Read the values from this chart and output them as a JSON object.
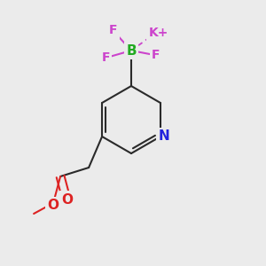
{
  "background_color": "#ebebeb",
  "bond_color": "#2a2a2a",
  "dashed_bond_color": "#cc44cc",
  "atom_colors": {
    "B": "#22aa22",
    "F": "#cc44cc",
    "K": "#cc44cc",
    "N": "#2222dd",
    "O": "#dd2222",
    "C": "#2a2a2a"
  },
  "figsize": [
    3.0,
    3.0
  ],
  "dpi": 100
}
